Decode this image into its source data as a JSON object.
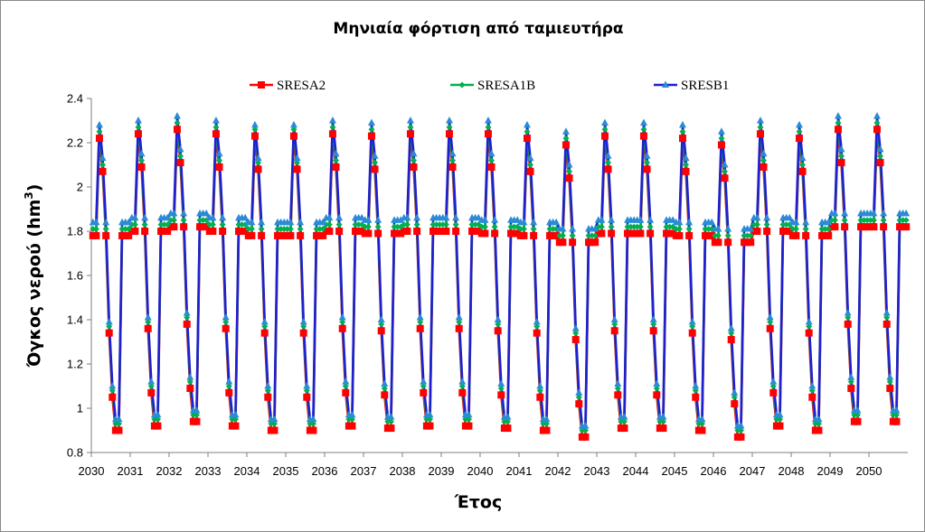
{
  "chart_data": {
    "type": "line",
    "title": "Μηνιαία φόρτιση από ταμιευτήρα",
    "xlabel": "Έτος",
    "ylabel": "Όγκος νερού (hm³)",
    "ylabel_main": "Όγκος νερού (hm",
    "ylabel_sup": "3",
    "ylabel_end": ")",
    "xlim": [
      2030,
      2051
    ],
    "ylim": [
      0.8,
      2.4
    ],
    "x_ticks": [
      "2030",
      "2031",
      "2032",
      "2033",
      "2034",
      "2035",
      "2036",
      "2037",
      "2038",
      "2039",
      "2040",
      "2041",
      "2042",
      "2043",
      "2044",
      "2045",
      "2046",
      "2047",
      "2048",
      "2049",
      "2050"
    ],
    "y_ticks": [
      "0.8",
      "1",
      "1.2",
      "1.4",
      "1.6",
      "1.8",
      "2",
      "2.2",
      "2.4"
    ],
    "grid": false,
    "legend_position": "top",
    "months_per_year": 12,
    "start_year": 2030,
    "series": [
      {
        "name": "SRESA2",
        "color": "#ff0000",
        "marker": "square",
        "annual_peak": [
          2.22,
          2.24,
          2.26,
          2.24,
          2.23,
          2.23,
          2.24,
          2.23,
          2.24,
          2.24,
          2.24,
          2.22,
          2.19,
          2.23,
          2.23,
          2.22,
          2.19,
          2.24,
          2.22,
          2.26,
          2.26
        ],
        "annual_min": [
          0.9,
          0.92,
          0.94,
          0.92,
          0.9,
          0.9,
          0.92,
          0.91,
          0.92,
          0.92,
          0.91,
          0.9,
          0.87,
          0.91,
          0.91,
          0.9,
          0.87,
          0.92,
          0.9,
          0.94,
          0.94
        ],
        "plateau": [
          1.78,
          1.8,
          1.82,
          1.8,
          1.78,
          1.78,
          1.8,
          1.79,
          1.8,
          1.8,
          1.79,
          1.78,
          1.75,
          1.79,
          1.79,
          1.78,
          1.75,
          1.8,
          1.78,
          1.82,
          1.82
        ]
      },
      {
        "name": "SRESA1B",
        "color": "#00b050",
        "marker": "diamond",
        "annual_peak": [
          2.25,
          2.27,
          2.29,
          2.27,
          2.26,
          2.26,
          2.27,
          2.26,
          2.27,
          2.27,
          2.27,
          2.25,
          2.22,
          2.26,
          2.26,
          2.25,
          2.22,
          2.27,
          2.25,
          2.29,
          2.29
        ],
        "annual_min": [
          0.93,
          0.95,
          0.97,
          0.95,
          0.93,
          0.93,
          0.95,
          0.94,
          0.95,
          0.95,
          0.94,
          0.93,
          0.9,
          0.94,
          0.94,
          0.93,
          0.9,
          0.95,
          0.93,
          0.97,
          0.97
        ],
        "plateau": [
          1.81,
          1.83,
          1.85,
          1.83,
          1.81,
          1.81,
          1.83,
          1.82,
          1.83,
          1.83,
          1.82,
          1.81,
          1.78,
          1.82,
          1.82,
          1.81,
          1.78,
          1.83,
          1.81,
          1.85,
          1.85
        ]
      },
      {
        "name": "SRESB1",
        "color": "#1f1fd0",
        "marker": "triangle",
        "annual_peak": [
          2.28,
          2.3,
          2.32,
          2.3,
          2.28,
          2.28,
          2.3,
          2.29,
          2.3,
          2.3,
          2.3,
          2.28,
          2.25,
          2.29,
          2.29,
          2.28,
          2.25,
          2.3,
          2.28,
          2.32,
          2.32
        ],
        "annual_min": [
          0.95,
          0.97,
          0.99,
          0.97,
          0.95,
          0.95,
          0.97,
          0.96,
          0.97,
          0.97,
          0.96,
          0.95,
          0.92,
          0.96,
          0.96,
          0.95,
          0.92,
          0.97,
          0.95,
          0.99,
          0.99
        ],
        "plateau": [
          1.84,
          1.86,
          1.88,
          1.86,
          1.84,
          1.84,
          1.86,
          1.85,
          1.86,
          1.86,
          1.85,
          1.84,
          1.81,
          1.85,
          1.85,
          1.84,
          1.81,
          1.86,
          1.84,
          1.88,
          1.88
        ]
      }
    ]
  }
}
